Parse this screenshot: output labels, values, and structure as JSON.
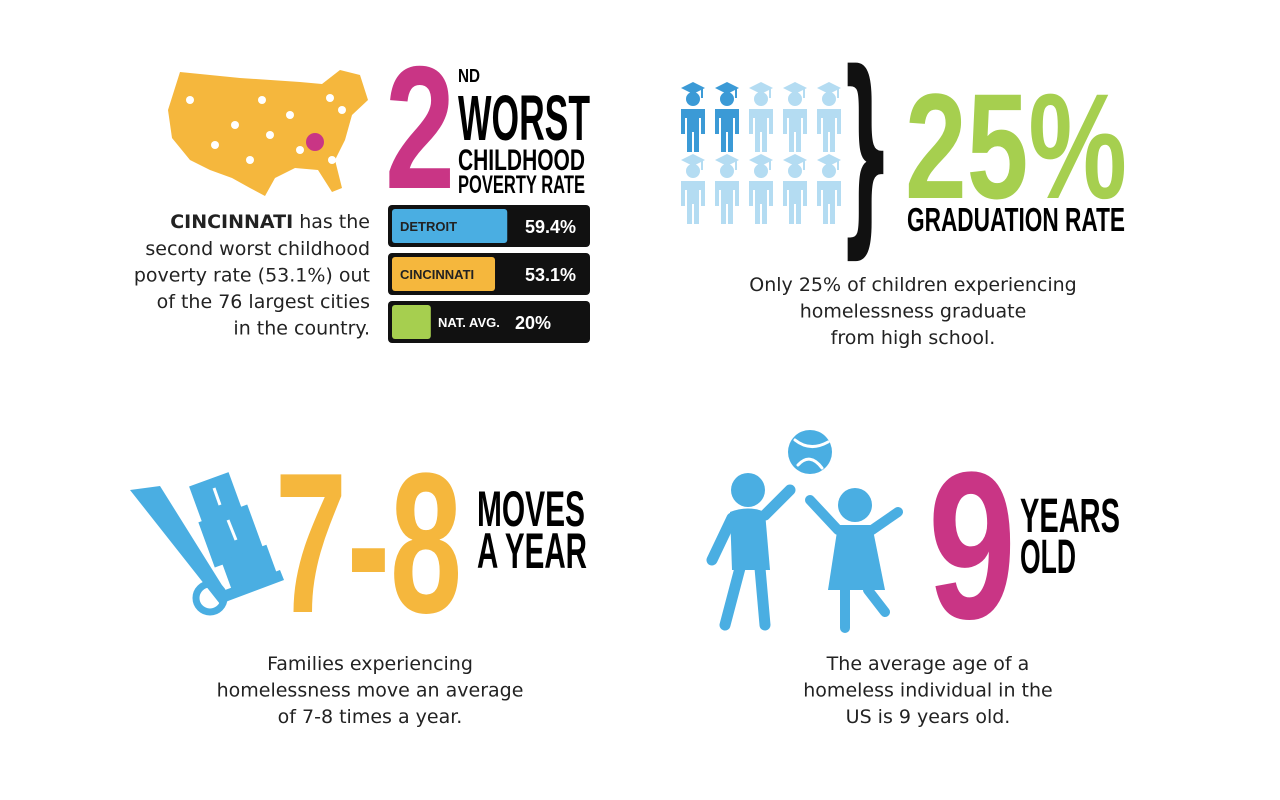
{
  "poverty": {
    "rank": "2",
    "rank_suffix": "ND",
    "headline": "WORST",
    "line2": "CHILDHOOD",
    "line3": "POVERTY RATE",
    "lead": "CINCINNATI",
    "lines": [
      "has the",
      "second worst childhood",
      "poverty rate (53.1%) out",
      "of the 76 largest cities",
      "in the country."
    ],
    "bars": [
      {
        "label": "DETROIT",
        "value": 59.4,
        "value_label": "59.4%",
        "color": "#4aaee2"
      },
      {
        "label": "CINCINNATI",
        "value": 53.1,
        "value_label": "53.1%",
        "color": "#f5b73d"
      },
      {
        "label": "NAT. AVG.",
        "value": 20,
        "value_label": "20%",
        "color": "#a6cf4f"
      }
    ]
  },
  "graduation": {
    "big": "25%",
    "caption": "GRADUATION RATE",
    "lines": [
      "Only 25% of children experiencing",
      "homelessness graduate",
      "from high school."
    ]
  },
  "moves": {
    "big": "7-8",
    "line1": "MOVES",
    "line2": "A YEAR",
    "lines": [
      "Families experiencing",
      "homelessness move an average",
      "of 7-8 times a year."
    ]
  },
  "age": {
    "big": "9",
    "line1": "YEARS",
    "line2": "OLD",
    "lines": [
      "The average age of a",
      "homeless individual in the",
      "US is 9 years old."
    ]
  }
}
